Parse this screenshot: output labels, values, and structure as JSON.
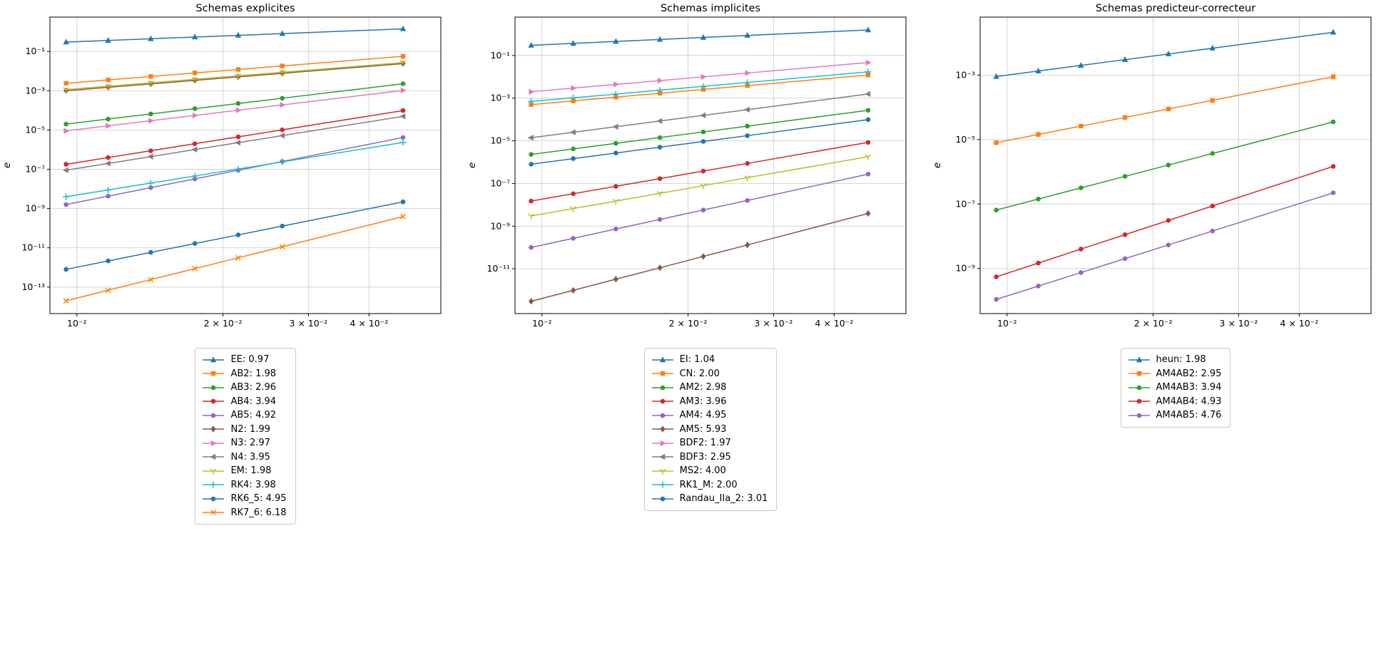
{
  "figure": {
    "background": "#ffffff"
  },
  "chart_data": [
    {
      "type": "line",
      "title": "Schemas explicites",
      "ylabel": "e",
      "grid": true,
      "legend_position": "below-center",
      "x": [
        0.0095,
        0.0116,
        0.0142,
        0.0175,
        0.0215,
        0.0265,
        0.047
      ],
      "xlim_log": [
        -2.0555,
        -1.25
      ],
      "ylim_log": [
        -14.35,
        0.75
      ],
      "xticks": [
        0.01,
        0.02,
        0.03,
        0.04
      ],
      "xtick_labels": [
        "10⁻²",
        "2 × 10⁻²",
        "3 × 10⁻²",
        "4 × 10⁻²"
      ],
      "yticks_exp": [
        -1,
        -3,
        -5,
        -7,
        -9,
        -11,
        -13
      ],
      "ytick_labels": [
        "10⁻¹",
        "10⁻³",
        "10⁻⁵",
        "10⁻⁷",
        "10⁻⁹",
        "10⁻¹¹",
        "10⁻¹³"
      ],
      "series": [
        {
          "name": "EE: 0.97",
          "color": "#1f77b4",
          "marker": "triangle-up",
          "values": [
            0.3,
            0.364,
            0.443,
            0.543,
            0.663,
            0.811,
            1.42
          ]
        },
        {
          "name": "AB2: 1.98",
          "color": "#ff7f0e",
          "marker": "square",
          "values": [
            0.0024,
            0.00356,
            0.00532,
            0.00804,
            0.0121,
            0.0183,
            0.0569
          ]
        },
        {
          "name": "AB3: 2.96",
          "color": "#2ca02c",
          "marker": "circle",
          "values": [
            2e-05,
            3.61e-05,
            6.58e-05,
            0.000122,
            0.000224,
            0.000416,
            0.00227
          ]
        },
        {
          "name": "AB4: 3.94",
          "color": "#d62728",
          "marker": "circle",
          "values": [
            1.8e-07,
            3.95e-07,
            8.78e-07,
            2e-06,
            4.49e-06,
            1.02e-05,
            9.8e-05
          ]
        },
        {
          "name": "AB5: 4.92",
          "color": "#9467bd",
          "marker": "circle",
          "values": [
            1.6e-09,
            4.28e-09,
            1.16e-08,
            3.23e-08,
            8.89e-08,
            2.49e-07,
            4.17e-06
          ]
        },
        {
          "name": "N2: 1.99",
          "color": "#8c564b",
          "marker": "diamond",
          "values": [
            0.001,
            0.00149,
            0.00223,
            0.00337,
            0.00508,
            0.0077,
            0.0241
          ]
        },
        {
          "name": "N3: 2.97",
          "color": "#e377c2",
          "marker": "triangle-right",
          "values": [
            9e-06,
            1.63e-05,
            2.97e-05,
            5.52e-05,
            0.000102,
            0.000189,
            0.00104
          ]
        },
        {
          "name": "N4: 3.95",
          "color": "#7f7f7f",
          "marker": "triangle-left",
          "values": [
            9e-08,
            1.98e-07,
            4.41e-07,
            1.01e-06,
            2.27e-06,
            5.17e-06,
            4.98e-05
          ]
        },
        {
          "name": "EM: 1.98",
          "color": "#bcbd22",
          "marker": "tri-down",
          "values": [
            0.00115,
            0.00171,
            0.00255,
            0.00385,
            0.00579,
            0.00876,
            0.0273
          ]
        },
        {
          "name": "RK4: 3.98",
          "color": "#17becf",
          "marker": "plus",
          "values": [
            4e-09,
            8.86e-09,
            1.98e-08,
            4.55e-08,
            1.03e-07,
            2.37e-07,
            2.32e-06
          ]
        },
        {
          "name": "RK6_5: 4.95",
          "color": "#1f77b4",
          "marker": "circle",
          "values": [
            8e-13,
            2.15e-12,
            5.86e-12,
            1.65e-11,
            4.56e-11,
            1.28e-10,
            2.19e-09
          ]
        },
        {
          "name": "RK7_6: 6.18",
          "color": "#ff7f0e",
          "marker": "x",
          "values": [
            2e-14,
            6.9e-14,
            2.4e-13,
            8.7e-13,
            3.11e-12,
            1.13e-11,
            3.91e-10
          ]
        }
      ]
    },
    {
      "type": "line",
      "title": "Schemas implicites",
      "ylabel": "e",
      "grid": true,
      "legend_position": "below-center",
      "x": [
        0.0095,
        0.0116,
        0.0142,
        0.0175,
        0.0215,
        0.0265,
        0.047
      ],
      "xlim_log": [
        -2.0555,
        -1.25
      ],
      "ylim_log": [
        -13.1,
        0.8
      ],
      "xticks": [
        0.01,
        0.02,
        0.03,
        0.04
      ],
      "xtick_labels": [
        "10⁻²",
        "2 × 10⁻²",
        "3 × 10⁻²",
        "4 × 10⁻²"
      ],
      "yticks_exp": [
        -1,
        -3,
        -5,
        -7,
        -9,
        -11
      ],
      "ytick_labels": [
        "10⁻¹",
        "10⁻³",
        "10⁻⁵",
        "10⁻⁷",
        "10⁻⁹",
        "10⁻¹¹"
      ],
      "series": [
        {
          "name": "EI: 1.04",
          "color": "#1f77b4",
          "marker": "triangle-up",
          "values": [
            0.3,
            0.369,
            0.456,
            0.566,
            0.702,
            0.872,
            1.58
          ]
        },
        {
          "name": "CN: 2.00",
          "color": "#ff7f0e",
          "marker": "square",
          "values": [
            0.0005,
            0.000746,
            0.00112,
            0.0017,
            0.00256,
            0.00389,
            0.0122
          ]
        },
        {
          "name": "AM2: 2.98",
          "color": "#2ca02c",
          "marker": "circle",
          "values": [
            2.3e-06,
            4.17e-06,
            7.62e-06,
            1.42e-05,
            2.62e-05,
            4.89e-05,
            0.00027
          ]
        },
        {
          "name": "AM3: 3.96",
          "color": "#d62728",
          "marker": "circle",
          "values": [
            1.5e-08,
            3.31e-08,
            7.37e-08,
            1.69e-07,
            3.81e-07,
            8.71e-07,
            8.43e-06
          ]
        },
        {
          "name": "AM4: 4.95",
          "color": "#9467bd",
          "marker": "circle",
          "values": [
            1e-10,
            2.69e-10,
            7.32e-10,
            2.06e-09,
            5.7e-09,
            1.6e-08,
            2.74e-07
          ]
        },
        {
          "name": "AM5: 5.93",
          "color": "#8c564b",
          "marker": "diamond",
          "values": [
            3e-13,
            9.8e-13,
            3.25e-12,
            1.12e-11,
            3.8e-11,
            1.31e-10,
            3.93e-09
          ]
        },
        {
          "name": "BDF2: 1.97",
          "color": "#e377c2",
          "marker": "triangle-right",
          "values": [
            0.002,
            0.00296,
            0.00442,
            0.00666,
            0.00999,
            0.0151,
            0.0467
          ]
        },
        {
          "name": "BDF3: 2.95",
          "color": "#7f7f7f",
          "marker": "triangle-left",
          "values": [
            1.4e-05,
            2.52e-05,
            4.58e-05,
            8.49e-05,
            0.000156,
            0.000289,
            0.00157
          ]
        },
        {
          "name": "MS2: 4.00",
          "color": "#bcbd22",
          "marker": "tri-down",
          "values": [
            3e-09,
            6.67e-09,
            1.5e-08,
            3.45e-08,
            7.86e-08,
            1.87e-07,
            1.8e-06
          ]
        },
        {
          "name": "RK1_M: 2.00",
          "color": "#17becf",
          "marker": "plus",
          "values": [
            0.0007,
            0.00104,
            0.00156,
            0.00237,
            0.00358,
            0.00545,
            0.0171
          ]
        },
        {
          "name": "Randau_IIa_2: 3.01",
          "color": "#1f77b4",
          "marker": "circle",
          "values": [
            8e-07,
            1.46e-06,
            2.68e-06,
            5.03e-06,
            9.35e-06,
            1.75e-05,
            9.85e-05
          ]
        }
      ]
    },
    {
      "type": "line",
      "title": "Schemas predicteur-correcteur",
      "ylabel": "e",
      "grid": true,
      "legend_position": "below-center",
      "x": [
        0.0095,
        0.0116,
        0.0142,
        0.0175,
        0.0215,
        0.0265,
        0.047
      ],
      "xlim_log": [
        -2.0555,
        -1.25
      ],
      "ylim_log": [
        -10.4,
        -1.2
      ],
      "xticks": [
        0.01,
        0.02,
        0.03,
        0.04
      ],
      "xtick_labels": [
        "10⁻²",
        "2 × 10⁻²",
        "3 × 10⁻²",
        "4 × 10⁻²"
      ],
      "yticks_exp": [
        -3,
        -5,
        -7,
        -9
      ],
      "ytick_labels": [
        "10⁻³",
        "10⁻⁵",
        "10⁻⁷",
        "10⁻⁹"
      ],
      "series": [
        {
          "name": "heun: 1.98",
          "color": "#1f77b4",
          "marker": "triangle-up",
          "values": [
            0.0009,
            0.00134,
            0.002,
            0.00302,
            0.00453,
            0.00686,
            0.0213
          ]
        },
        {
          "name": "AM4AB2: 2.95",
          "color": "#ff7f0e",
          "marker": "square",
          "values": [
            8e-06,
            1.44e-05,
            2.62e-05,
            4.85e-05,
            8.9e-05,
            0.000165,
            0.000894
          ]
        },
        {
          "name": "AM4AB3: 3.94",
          "color": "#2ca02c",
          "marker": "circle",
          "values": [
            6.5e-08,
            1.43e-07,
            3.17e-07,
            7.22e-07,
            1.62e-06,
            3.7e-06,
            3.54e-05
          ]
        },
        {
          "name": "AM4AB4: 4.93",
          "color": "#d62728",
          "marker": "circle",
          "values": [
            5.5e-10,
            1.47e-09,
            4e-09,
            1.12e-08,
            3.09e-08,
            8.69e-08,
            1.47e-06
          ]
        },
        {
          "name": "AM4AB5: 4.76",
          "color": "#9467bd",
          "marker": "circle",
          "values": [
            1.1e-10,
            2.85e-10,
            7.46e-10,
            2.02e-09,
            5.36e-09,
            1.45e-08,
            2.22e-07
          ]
        }
      ]
    }
  ]
}
